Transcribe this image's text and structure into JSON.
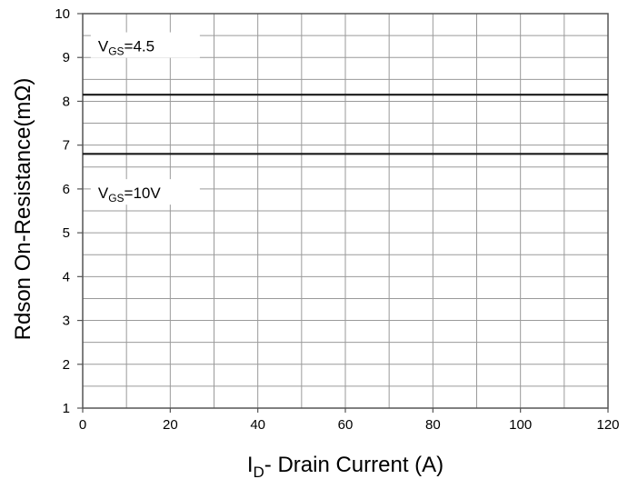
{
  "chart_data": {
    "type": "line",
    "xlabel_main": "I",
    "xlabel_sub": "D",
    "xlabel_rest": "- Drain Current (A)",
    "ylabel": "Rdson On-Resistance(mΩ)",
    "xlim": [
      0,
      120
    ],
    "ylim": [
      1,
      10
    ],
    "x_ticks": [
      "0",
      "20",
      "40",
      "60",
      "80",
      "100",
      "120"
    ],
    "y_ticks": [
      "1",
      "2",
      "3",
      "4",
      "5",
      "6",
      "7",
      "8",
      "9",
      "10"
    ],
    "grid": true,
    "series": [
      {
        "label_main": "V",
        "label_sub": "GS",
        "label_rest": "=4.5",
        "x": [
          0,
          120
        ],
        "y": [
          8.15,
          8.15
        ],
        "color": "#1a1a1a"
      },
      {
        "label_main": "V",
        "label_sub": "GS",
        "label_rest": "=10V",
        "x": [
          0,
          120
        ],
        "y": [
          6.8,
          6.8
        ],
        "color": "#1a1a1a"
      }
    ]
  }
}
